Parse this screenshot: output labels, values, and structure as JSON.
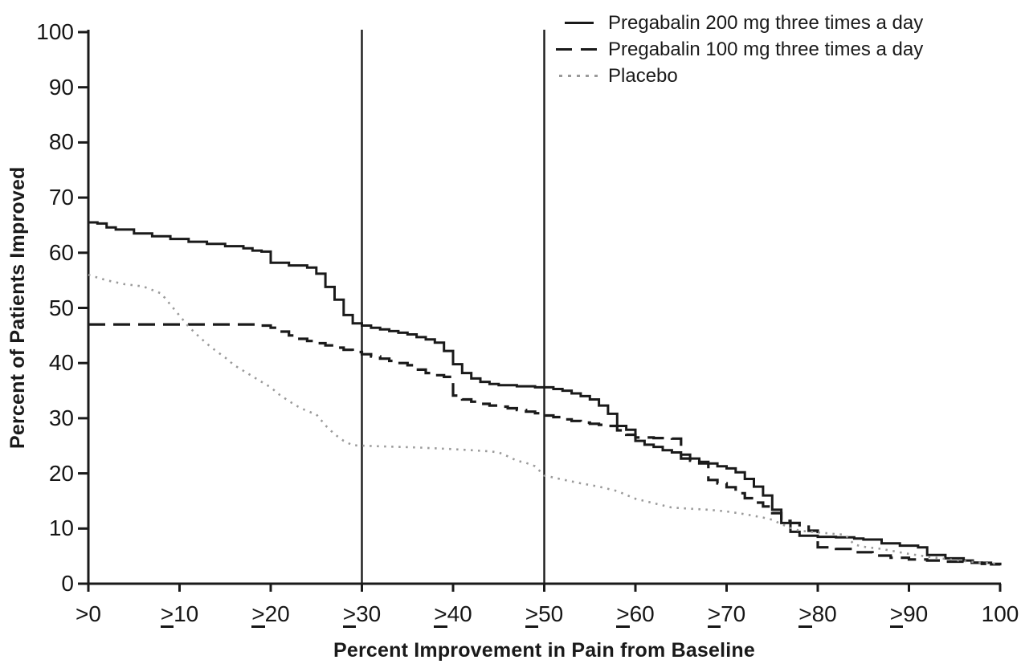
{
  "chart_data": {
    "type": "line",
    "title": "",
    "xlabel": "Percent Improvement in Pain from Baseline",
    "ylabel": "Percent of Patients Improved",
    "xlim": [
      0,
      100
    ],
    "ylim": [
      0,
      100
    ],
    "grid": false,
    "legend_position": "top-right",
    "axis_color": "#1a1a1a",
    "x_tick_values": [
      0,
      10,
      20,
      30,
      40,
      50,
      60,
      70,
      80,
      90,
      100
    ],
    "x_tick_labels": [
      ">0",
      "≥10",
      "≥20",
      "≥30",
      "≥40",
      "≥50",
      "≥60",
      "≥70",
      "≥80",
      "≥90",
      "100"
    ],
    "y_tick_values": [
      0,
      10,
      20,
      30,
      40,
      50,
      60,
      70,
      80,
      90,
      100
    ],
    "y_tick_labels": [
      "0",
      "10",
      "20",
      "30",
      "40",
      "50",
      "60",
      "70",
      "80",
      "90",
      "100"
    ],
    "reference_lines_x": [
      30,
      50
    ],
    "series": [
      {
        "name": "Pregabalin 200 mg three times a day",
        "line_style": "solid",
        "color": "#1a1a1a",
        "interpolation": "step",
        "points": [
          [
            0,
            65.5
          ],
          [
            1,
            65.3
          ],
          [
            2,
            64.6
          ],
          [
            3,
            64.2
          ],
          [
            5,
            63.5
          ],
          [
            7,
            63
          ],
          [
            9,
            62.5
          ],
          [
            11,
            62
          ],
          [
            13,
            61.6
          ],
          [
            15,
            61.2
          ],
          [
            17,
            60.8
          ],
          [
            18,
            60.4
          ],
          [
            19,
            60.2
          ],
          [
            20,
            58.2
          ],
          [
            22,
            57.7
          ],
          [
            24,
            57.3
          ],
          [
            25,
            56.2
          ],
          [
            26,
            53.8
          ],
          [
            27,
            51.5
          ],
          [
            28,
            48.7
          ],
          [
            29,
            47.2
          ],
          [
            30,
            46.8
          ],
          [
            31,
            46.4
          ],
          [
            32,
            46.1
          ],
          [
            33,
            45.8
          ],
          [
            34,
            45.5
          ],
          [
            35,
            45.2
          ],
          [
            36,
            44.7
          ],
          [
            37,
            44.3
          ],
          [
            38,
            43.7
          ],
          [
            39,
            42.2
          ],
          [
            40,
            39.8
          ],
          [
            41,
            38.2
          ],
          [
            42,
            37.2
          ],
          [
            43,
            36.6
          ],
          [
            44,
            36.2
          ],
          [
            45,
            36
          ],
          [
            47,
            35.8
          ],
          [
            49,
            35.6
          ],
          [
            51,
            35.3
          ],
          [
            52,
            35
          ],
          [
            53,
            34.5
          ],
          [
            54,
            34
          ],
          [
            55,
            33.4
          ],
          [
            56,
            32.3
          ],
          [
            57,
            30.8
          ],
          [
            58,
            28.6
          ],
          [
            59,
            27.9
          ],
          [
            60,
            25.9
          ],
          [
            61,
            25.2
          ],
          [
            62,
            24.8
          ],
          [
            63,
            24.2
          ],
          [
            64,
            23.8
          ],
          [
            65,
            23.4
          ],
          [
            66,
            22.7
          ],
          [
            67,
            22.1
          ],
          [
            68,
            21.8
          ],
          [
            69,
            21.3
          ],
          [
            70,
            20.9
          ],
          [
            71,
            20.2
          ],
          [
            72,
            19
          ],
          [
            73,
            17.6
          ],
          [
            74,
            16
          ],
          [
            75,
            13.4
          ],
          [
            76,
            11
          ],
          [
            77,
            9.4
          ],
          [
            78,
            8.7
          ],
          [
            80,
            8.5
          ],
          [
            82,
            8.4
          ],
          [
            84,
            8.2
          ],
          [
            85,
            8
          ],
          [
            87,
            7.3
          ],
          [
            89,
            6.9
          ],
          [
            91,
            6.6
          ],
          [
            92,
            5.2
          ],
          [
            94,
            4.6
          ],
          [
            96,
            4.2
          ],
          [
            97,
            3.8
          ],
          [
            99,
            3.5
          ],
          [
            100,
            3.3
          ]
        ]
      },
      {
        "name": "Pregabalin 100 mg three times a day",
        "line_style": "long-dash",
        "color": "#1a1a1a",
        "interpolation": "step",
        "points": [
          [
            0,
            47
          ],
          [
            18,
            47
          ],
          [
            19,
            46.8
          ],
          [
            20,
            46.4
          ],
          [
            21,
            45.7
          ],
          [
            22,
            45
          ],
          [
            23,
            44.4
          ],
          [
            24,
            44
          ],
          [
            25,
            43.6
          ],
          [
            26,
            43.2
          ],
          [
            27,
            42.8
          ],
          [
            28,
            42.4
          ],
          [
            29,
            42
          ],
          [
            30,
            41.6
          ],
          [
            31,
            41.2
          ],
          [
            32,
            40.8
          ],
          [
            33,
            40.4
          ],
          [
            34,
            40
          ],
          [
            35,
            39.6
          ],
          [
            36,
            38.8
          ],
          [
            37,
            38.2
          ],
          [
            38,
            37.8
          ],
          [
            39,
            37.5
          ],
          [
            40,
            34.1
          ],
          [
            41,
            33.4
          ],
          [
            42,
            33
          ],
          [
            43,
            32.6
          ],
          [
            44,
            32.3
          ],
          [
            45,
            32.1
          ],
          [
            46,
            31.8
          ],
          [
            47,
            31.5
          ],
          [
            48,
            31.2
          ],
          [
            49,
            30.9
          ],
          [
            50,
            30.5
          ],
          [
            51,
            30.2
          ],
          [
            52,
            29.8
          ],
          [
            53,
            29.5
          ],
          [
            54,
            29.2
          ],
          [
            55,
            29
          ],
          [
            56,
            28.8
          ],
          [
            57,
            28.6
          ],
          [
            58,
            27.8
          ],
          [
            59,
            27
          ],
          [
            60,
            26.5
          ],
          [
            62,
            26.4
          ],
          [
            64,
            26.3
          ],
          [
            65,
            22.7
          ],
          [
            66,
            22.3
          ],
          [
            67,
            21.8
          ],
          [
            68,
            18.8
          ],
          [
            69,
            18.2
          ],
          [
            70,
            17.5
          ],
          [
            71,
            16.4
          ],
          [
            72,
            15.5
          ],
          [
            73,
            14.7
          ],
          [
            74,
            14
          ],
          [
            75,
            12.8
          ],
          [
            76,
            11.4
          ],
          [
            77,
            11
          ],
          [
            78,
            10.6
          ],
          [
            79,
            9.6
          ],
          [
            80,
            6.6
          ],
          [
            82,
            6.3
          ],
          [
            84,
            5.7
          ],
          [
            86,
            5.1
          ],
          [
            88,
            4.7
          ],
          [
            90,
            4.4
          ],
          [
            92,
            4.2
          ],
          [
            94,
            4
          ],
          [
            96,
            3.8
          ],
          [
            98,
            3.6
          ],
          [
            100,
            3.4
          ]
        ]
      },
      {
        "name": "Placebo",
        "line_style": "dotted",
        "color": "#9a9a9a",
        "interpolation": "linear",
        "points": [
          [
            0,
            56
          ],
          [
            2,
            55
          ],
          [
            4,
            54.3
          ],
          [
            6,
            53.9
          ],
          [
            8,
            52.6
          ],
          [
            9,
            50.6
          ],
          [
            10,
            48.6
          ],
          [
            11,
            46.6
          ],
          [
            12,
            45
          ],
          [
            13,
            43.5
          ],
          [
            14,
            42.2
          ],
          [
            15,
            41
          ],
          [
            16,
            39.6
          ],
          [
            17,
            38.6
          ],
          [
            18,
            37.6
          ],
          [
            19,
            36.6
          ],
          [
            20,
            35.6
          ],
          [
            21,
            34.2
          ],
          [
            22,
            33.1
          ],
          [
            23,
            32.1
          ],
          [
            24,
            31.3
          ],
          [
            25,
            30.7
          ],
          [
            26,
            28.7
          ],
          [
            27,
            27.1
          ],
          [
            28,
            25.9
          ],
          [
            29,
            25.1
          ],
          [
            32,
            24.9
          ],
          [
            36,
            24.7
          ],
          [
            40,
            24.4
          ],
          [
            44,
            24
          ],
          [
            45,
            23.8
          ],
          [
            46,
            23.1
          ],
          [
            47,
            22.3
          ],
          [
            48,
            21.9
          ],
          [
            49,
            21.3
          ],
          [
            50,
            19.6
          ],
          [
            52,
            18.9
          ],
          [
            54,
            18.2
          ],
          [
            56,
            17.6
          ],
          [
            58,
            16.8
          ],
          [
            60,
            15.4
          ],
          [
            62,
            14.6
          ],
          [
            64,
            13.8
          ],
          [
            66,
            13.6
          ],
          [
            68,
            13.4
          ],
          [
            70,
            13.1
          ],
          [
            72,
            12.6
          ],
          [
            74,
            12
          ],
          [
            75,
            11.6
          ],
          [
            76,
            10.8
          ],
          [
            77,
            10.1
          ],
          [
            78,
            9.6
          ],
          [
            80,
            9.3
          ],
          [
            82,
            9
          ],
          [
            83,
            8.9
          ],
          [
            84,
            7.1
          ],
          [
            85,
            6.7
          ],
          [
            87,
            6.3
          ],
          [
            88,
            6
          ],
          [
            90,
            5.4
          ],
          [
            92,
            4.9
          ],
          [
            94,
            4.5
          ],
          [
            96,
            4.1
          ],
          [
            98,
            3.8
          ],
          [
            100,
            3.6
          ]
        ]
      }
    ]
  }
}
